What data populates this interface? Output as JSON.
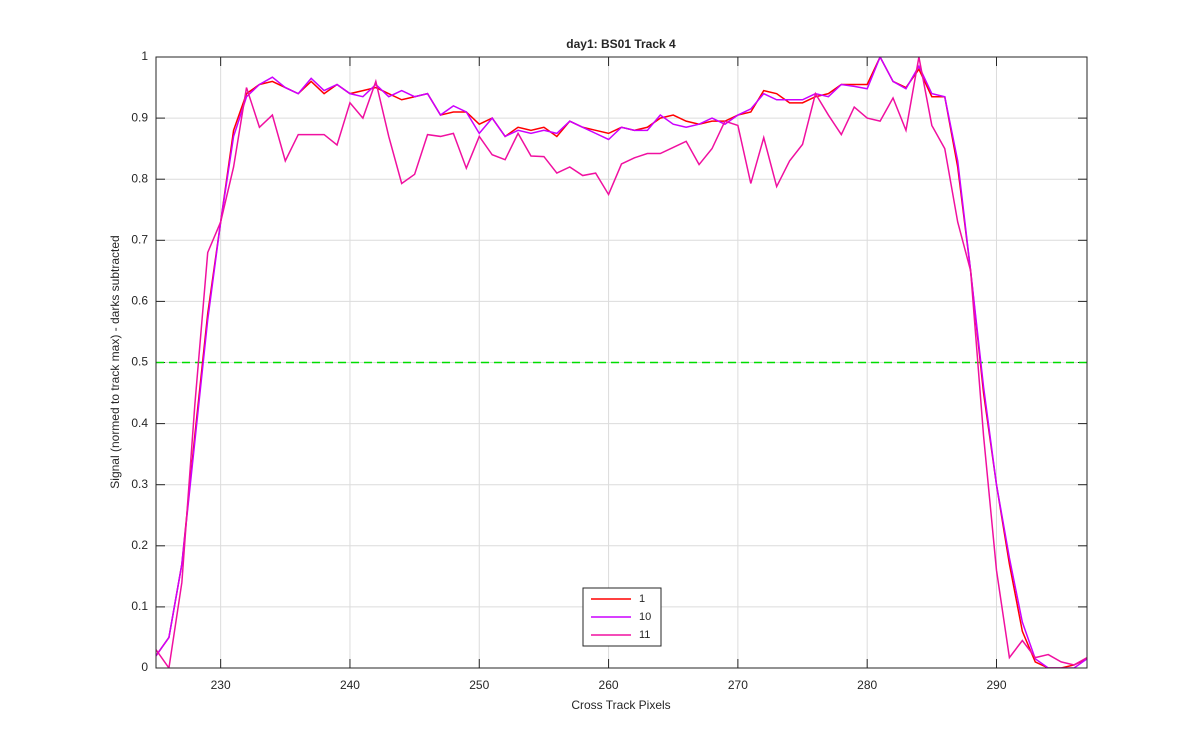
{
  "chart_data": {
    "type": "line",
    "title": "day1: BS01  Track 4",
    "xlabel": "Cross Track Pixels",
    "ylabel": "Signal (normed to track max) - darks subtracted",
    "x": [
      225,
      226,
      227,
      228,
      229,
      230,
      231,
      232,
      233,
      234,
      235,
      236,
      237,
      238,
      239,
      240,
      241,
      242,
      243,
      244,
      245,
      246,
      247,
      248,
      249,
      250,
      251,
      252,
      253,
      254,
      255,
      256,
      257,
      258,
      259,
      260,
      261,
      262,
      263,
      264,
      265,
      266,
      267,
      268,
      269,
      270,
      271,
      272,
      273,
      274,
      275,
      276,
      277,
      278,
      279,
      280,
      281,
      282,
      283,
      284,
      285,
      286,
      287,
      288,
      289,
      290,
      291,
      292,
      293,
      294,
      295,
      296,
      297
    ],
    "series": [
      {
        "name": "1",
        "color": "#ff0000",
        "values": [
          0.02,
          0.05,
          0.17,
          0.38,
          0.58,
          0.73,
          0.88,
          0.94,
          0.955,
          0.96,
          0.95,
          0.94,
          0.96,
          0.94,
          0.955,
          0.94,
          0.945,
          0.95,
          0.94,
          0.93,
          0.935,
          0.94,
          0.905,
          0.91,
          0.91,
          0.89,
          0.9,
          0.87,
          0.885,
          0.88,
          0.885,
          0.87,
          0.895,
          0.885,
          0.88,
          0.875,
          0.885,
          0.88,
          0.885,
          0.9,
          0.905,
          0.895,
          0.89,
          0.895,
          0.895,
          0.905,
          0.91,
          0.945,
          0.94,
          0.925,
          0.925,
          0.935,
          0.94,
          0.955,
          0.955,
          0.955,
          1.0,
          0.96,
          0.95,
          0.98,
          0.935,
          0.935,
          0.82,
          0.65,
          0.45,
          0.3,
          0.17,
          0.06,
          0.01,
          0.0,
          0.0,
          0.005,
          0.015
        ]
      },
      {
        "name": "10",
        "color": "#cc00ff",
        "values": [
          0.02,
          0.05,
          0.17,
          0.37,
          0.57,
          0.73,
          0.87,
          0.935,
          0.955,
          0.967,
          0.95,
          0.94,
          0.965,
          0.945,
          0.955,
          0.94,
          0.935,
          0.955,
          0.935,
          0.945,
          0.935,
          0.94,
          0.905,
          0.92,
          0.91,
          0.875,
          0.9,
          0.87,
          0.88,
          0.875,
          0.88,
          0.875,
          0.895,
          0.885,
          0.875,
          0.865,
          0.885,
          0.88,
          0.88,
          0.905,
          0.89,
          0.885,
          0.89,
          0.9,
          0.89,
          0.905,
          0.915,
          0.94,
          0.93,
          0.93,
          0.93,
          0.94,
          0.935,
          0.955,
          0.952,
          0.948,
          1.0,
          0.96,
          0.948,
          0.985,
          0.94,
          0.935,
          0.83,
          0.65,
          0.46,
          0.3,
          0.18,
          0.075,
          0.015,
          0.0,
          0.0,
          0.0,
          0.015
        ]
      },
      {
        "name": "11",
        "color": "#f010a0",
        "values": [
          0.03,
          0.0,
          0.14,
          0.43,
          0.68,
          0.73,
          0.82,
          0.95,
          0.885,
          0.905,
          0.83,
          0.873,
          0.873,
          0.873,
          0.856,
          0.925,
          0.9,
          0.96,
          0.87,
          0.793,
          0.808,
          0.873,
          0.87,
          0.875,
          0.818,
          0.87,
          0.84,
          0.832,
          0.875,
          0.838,
          0.837,
          0.81,
          0.82,
          0.806,
          0.81,
          0.775,
          0.825,
          0.835,
          0.842,
          0.842,
          0.852,
          0.862,
          0.824,
          0.85,
          0.895,
          0.888,
          0.793,
          0.868,
          0.788,
          0.83,
          0.857,
          0.94,
          0.905,
          0.873,
          0.918,
          0.9,
          0.895,
          0.933,
          0.88,
          1.0,
          0.888,
          0.85,
          0.73,
          0.65,
          0.38,
          0.16,
          0.017,
          0.045,
          0.017,
          0.022,
          0.01,
          0.005,
          0.017
        ]
      }
    ],
    "reference_line": {
      "value": 0.5,
      "color": "#00dd00"
    },
    "xlim": [
      225,
      297
    ],
    "xticks": [
      230,
      240,
      250,
      260,
      270,
      280,
      290
    ],
    "ylim": [
      0,
      1
    ],
    "yticks": [
      0,
      0.1,
      0.2,
      0.3,
      0.4,
      0.5,
      0.6,
      0.7,
      0.8,
      0.9,
      1
    ],
    "grid": true,
    "legend": "bottom"
  }
}
